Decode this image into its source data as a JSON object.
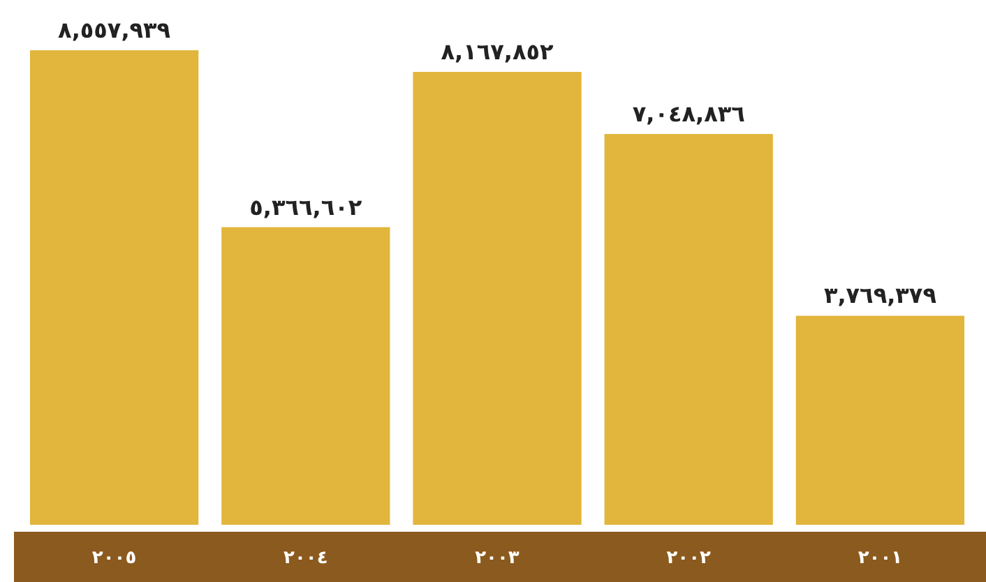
{
  "chart_data": {
    "type": "bar",
    "categories": [
      "٢٠٠٥",
      "٢٠٠٤",
      "٢٠٠٣",
      "٢٠٠٢",
      "٢٠٠١"
    ],
    "values": [
      8557939,
      5366602,
      8167852,
      7048836,
      3769379
    ],
    "value_labels": [
      "٨,٥٥٧,٩٣٩",
      "٥,٣٦٦,٦٠٢",
      "٨,١٦٧,٨٥٢",
      "٧,٠٤٨,٨٣٦",
      "٣,٧٦٩,٣٧٩"
    ],
    "color": "#e2b63c"
  }
}
